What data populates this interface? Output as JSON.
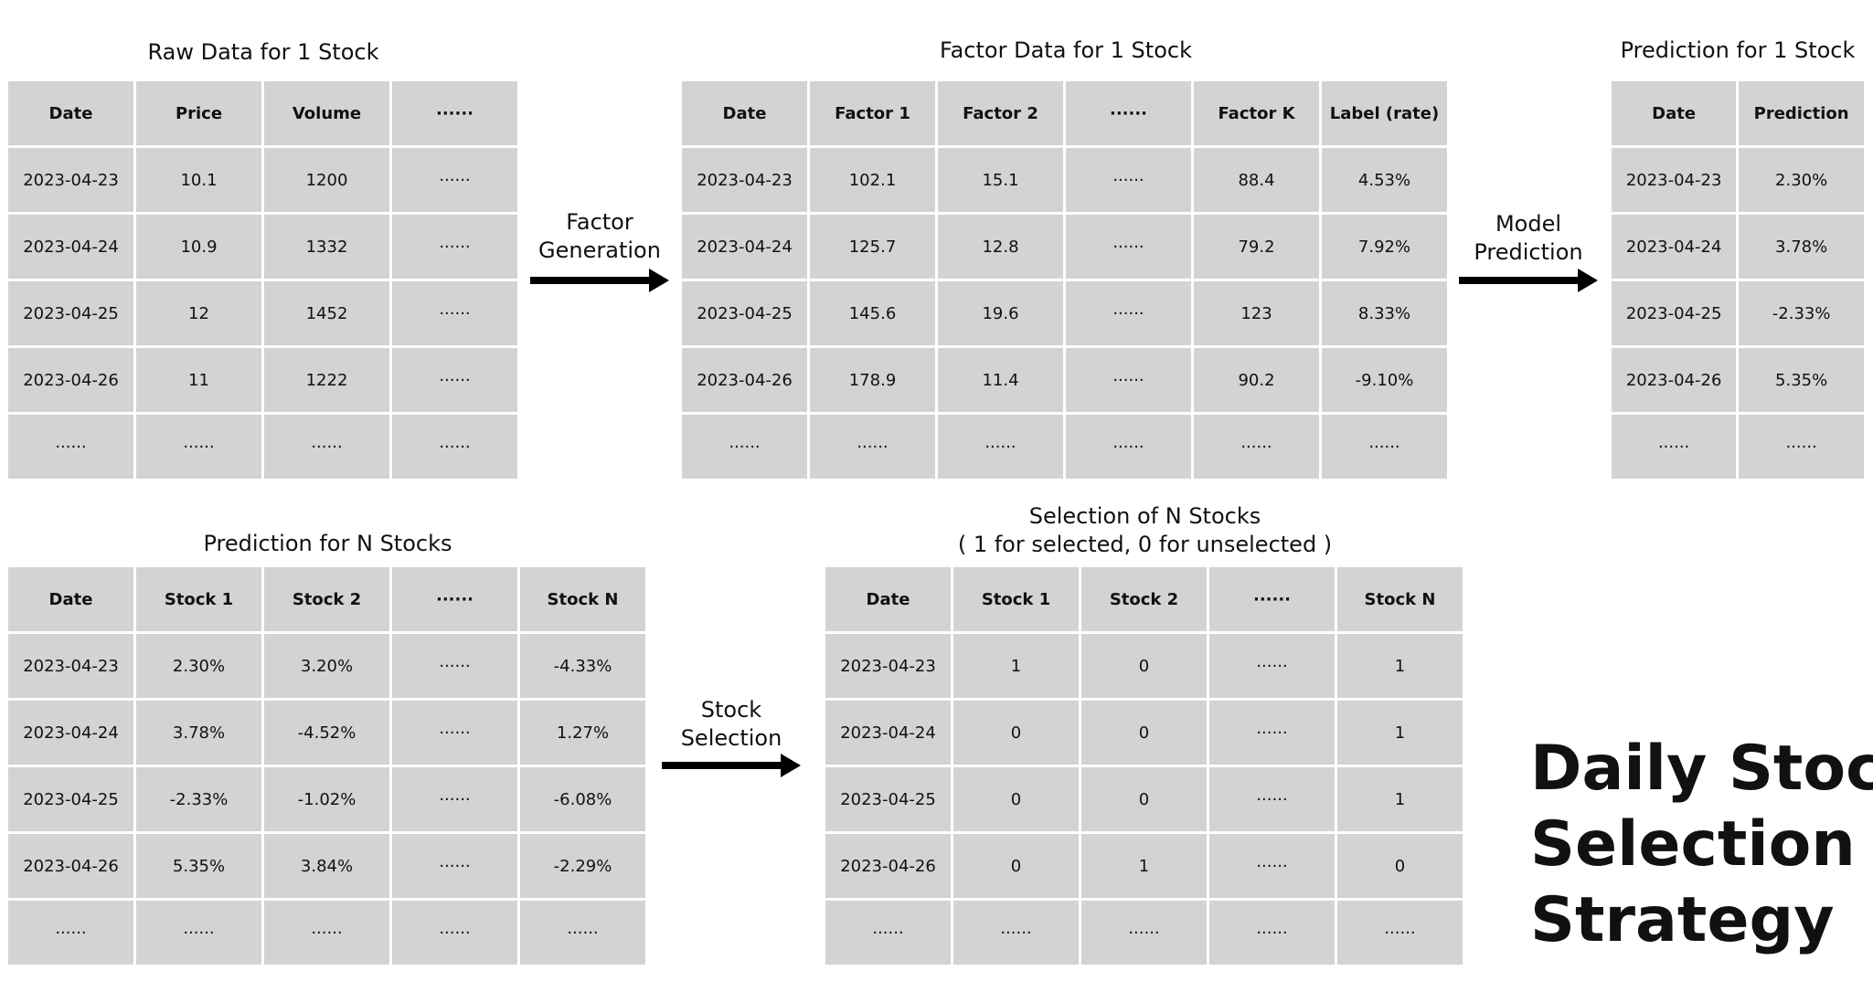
{
  "raw_table": {
    "title": "Raw Data for 1 Stock",
    "headers": [
      "Date",
      "Price",
      "Volume",
      "······"
    ],
    "rows": [
      [
        "2023-04-23",
        "10.1",
        "1200",
        "······"
      ],
      [
        "2023-04-24",
        "10.9",
        "1332",
        "······"
      ],
      [
        "2023-04-25",
        "12",
        "1452",
        "······"
      ],
      [
        "2023-04-26",
        "11",
        "1222",
        "······"
      ],
      [
        "······",
        "······",
        "······",
        "······"
      ]
    ]
  },
  "factor_table": {
    "title": "Factor Data for 1 Stock",
    "headers": [
      "Date",
      "Factor 1",
      "Factor 2",
      "······",
      "Factor K",
      "Label (rate)"
    ],
    "rows": [
      [
        "2023-04-23",
        "102.1",
        "15.1",
        "······",
        "88.4",
        "4.53%"
      ],
      [
        "2023-04-24",
        "125.7",
        "12.8",
        "······",
        "79.2",
        "7.92%"
      ],
      [
        "2023-04-25",
        "145.6",
        "19.6",
        "······",
        "123",
        "8.33%"
      ],
      [
        "2023-04-26",
        "178.9",
        "11.4",
        "······",
        "90.2",
        "-9.10%"
      ],
      [
        "······",
        "······",
        "······",
        "······",
        "······",
        "······"
      ]
    ]
  },
  "prediction_one_table": {
    "title": "Prediction for 1 Stock",
    "headers": [
      "Date",
      "Prediction"
    ],
    "rows": [
      [
        "2023-04-23",
        "2.30%"
      ],
      [
        "2023-04-24",
        "3.78%"
      ],
      [
        "2023-04-25",
        "-2.33%"
      ],
      [
        "2023-04-26",
        "5.35%"
      ],
      [
        "······",
        "······"
      ]
    ]
  },
  "prediction_n_table": {
    "title": "Prediction for N Stocks",
    "headers": [
      "Date",
      "Stock 1",
      "Stock 2",
      "······",
      "Stock N"
    ],
    "rows": [
      [
        "2023-04-23",
        "2.30%",
        "3.20%",
        "······",
        "-4.33%"
      ],
      [
        "2023-04-24",
        "3.78%",
        "-4.52%",
        "······",
        "1.27%"
      ],
      [
        "2023-04-25",
        "-2.33%",
        "-1.02%",
        "······",
        "-6.08%"
      ],
      [
        "2023-04-26",
        "5.35%",
        "3.84%",
        "······",
        "-2.29%"
      ],
      [
        "······",
        "······",
        "······",
        "······",
        "······"
      ]
    ]
  },
  "selection_table": {
    "title": "Selection of N Stocks",
    "subtitle": "( 1 for selected, 0 for unselected )",
    "headers": [
      "Date",
      "Stock 1",
      "Stock 2",
      "······",
      "Stock N"
    ],
    "rows": [
      [
        "2023-04-23",
        "1",
        "0",
        "······",
        "1"
      ],
      [
        "2023-04-24",
        "0",
        "0",
        "······",
        "1"
      ],
      [
        "2023-04-25",
        "0",
        "0",
        "······",
        "1"
      ],
      [
        "2023-04-26",
        "0",
        "1",
        "······",
        "0"
      ],
      [
        "······",
        "······",
        "······",
        "······",
        "······"
      ]
    ]
  },
  "arrows": {
    "factor_generation": [
      "Factor",
      "Generation"
    ],
    "model_prediction": [
      "Model",
      "Prediction"
    ],
    "stock_selection": [
      "Stock",
      "Selection"
    ]
  },
  "big_title": [
    "Daily Stock",
    "Selection",
    "Strategy"
  ]
}
